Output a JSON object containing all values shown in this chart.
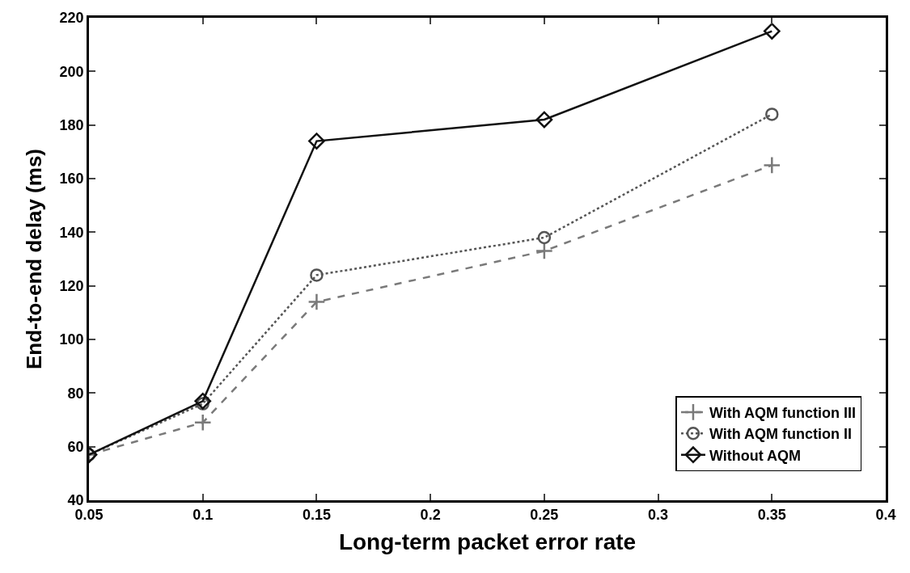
{
  "chart_data": {
    "type": "line",
    "xlabel": "Long-term packet error rate",
    "ylabel": "End-to-end delay (ms)",
    "x": [
      0.05,
      0.1,
      0.15,
      0.25,
      0.35
    ],
    "series": [
      {
        "name": "With AQM function III",
        "color": "#7a7a7a",
        "marker": "cross",
        "line_style": "dashed",
        "values": [
          57,
          69,
          114,
          133,
          165
        ]
      },
      {
        "name": "With AQM function II",
        "color": "#555555",
        "marker": "circle",
        "line_style": "dotted",
        "values": [
          57,
          76,
          124,
          138,
          184
        ]
      },
      {
        "name": "Without AQM",
        "color": "#111111",
        "marker": "diamond",
        "line_style": "solid",
        "values": [
          57,
          77,
          174,
          182,
          215
        ]
      }
    ],
    "xlim": [
      0.05,
      0.4
    ],
    "xticks": [
      0.05,
      0.1,
      0.15,
      0.2,
      0.25,
      0.3,
      0.35,
      0.4
    ],
    "ylim": [
      40,
      220
    ],
    "yticks": [
      40,
      60,
      80,
      100,
      120,
      140,
      160,
      180,
      200,
      220
    ],
    "legend": "bottom right"
  }
}
